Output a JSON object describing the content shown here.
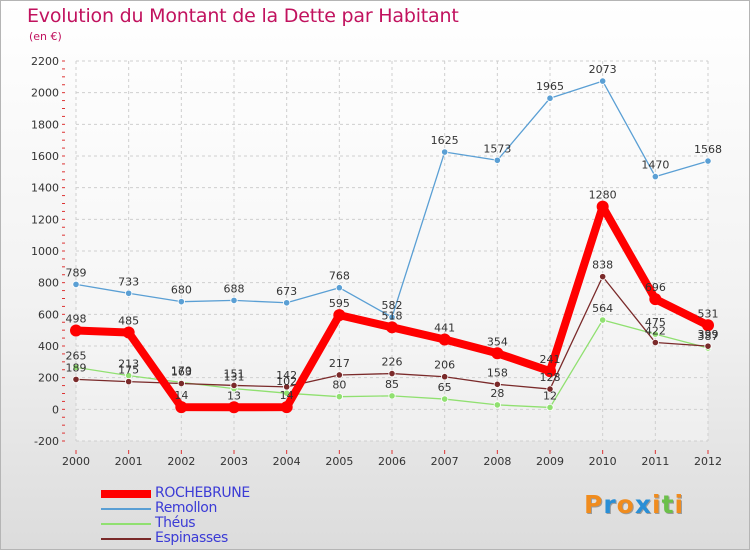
{
  "chart_data": {
    "type": "line",
    "title": "Evolution du Montant de la Dette par Habitant",
    "subtitle": "(en €)",
    "x": [
      "2000",
      "2001",
      "2002",
      "2003",
      "2004",
      "2005",
      "2006",
      "2007",
      "2008",
      "2009",
      "2010",
      "2011",
      "2012"
    ],
    "ylim": [
      -200,
      2200
    ],
    "yticks": [
      -200,
      0,
      200,
      400,
      600,
      800,
      1000,
      1200,
      1400,
      1600,
      1800,
      2000,
      2200
    ],
    "grid": true,
    "legend_position": "bottom-left",
    "series": [
      {
        "name": "ROCHEBRUNE",
        "color": "#ff0000",
        "values": [
          498,
          485,
          14,
          13,
          14,
          595,
          518,
          441,
          354,
          241,
          1280,
          696,
          531
        ]
      },
      {
        "name": "Remollon",
        "color": "#5a9fd4",
        "values": [
          789,
          733,
          680,
          688,
          673,
          768,
          582,
          1625,
          1573,
          1965,
          2073,
          1470,
          1568
        ]
      },
      {
        "name": "Théus",
        "color": "#90e070",
        "values": [
          265,
          213,
          170,
          131,
          102,
          80,
          85,
          65,
          28,
          12,
          564,
          475,
          387
        ]
      },
      {
        "name": "Espinasses",
        "color": "#7a2a2a",
        "values": [
          189,
          175,
          163,
          151,
          142,
          217,
          226,
          206,
          158,
          128,
          838,
          422,
          399
        ]
      }
    ]
  },
  "logo": {
    "letters": [
      "P",
      "r",
      "o",
      "x",
      "i",
      "t",
      "i"
    ],
    "colors": [
      "#f08c1e",
      "#2a8fd6",
      "#f08c1e",
      "#2a8fd6",
      "#f08c1e",
      "#6cc04a",
      "#f08c1e"
    ]
  }
}
